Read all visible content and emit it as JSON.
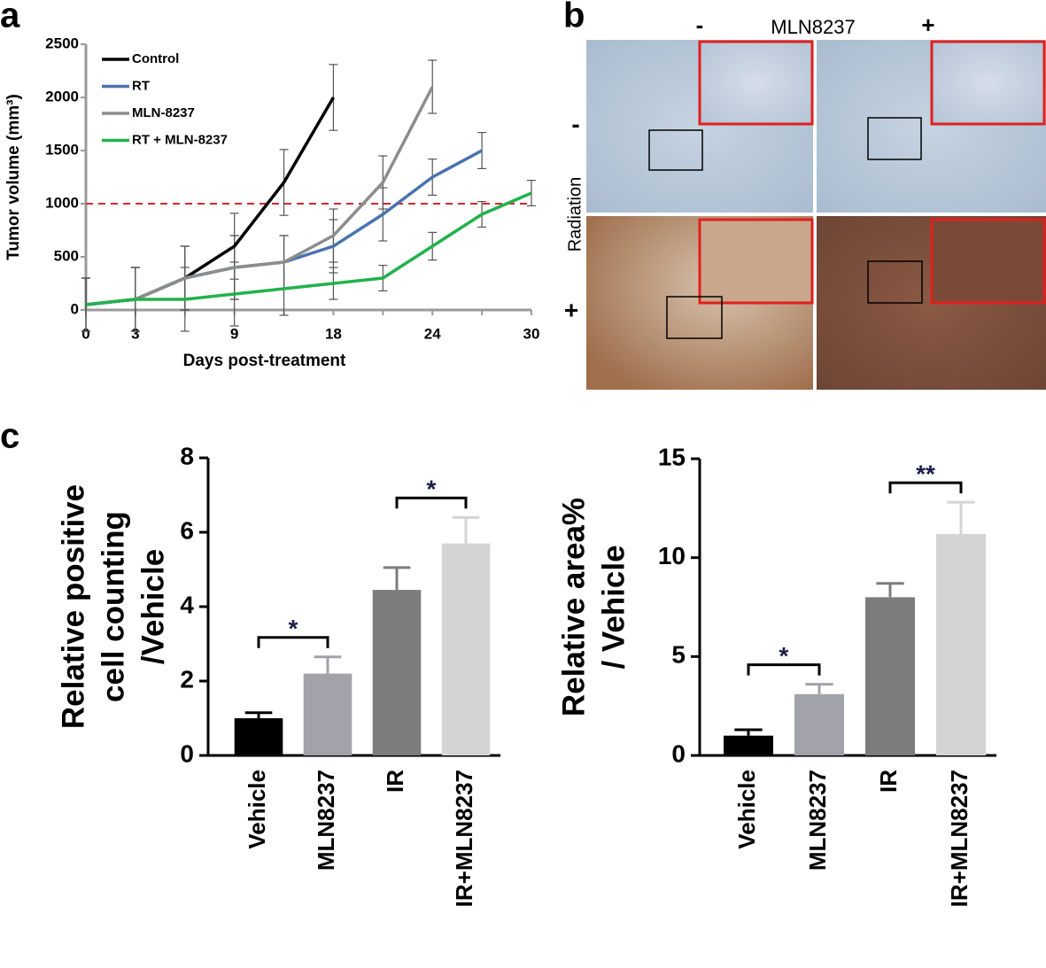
{
  "panel_labels": [
    "a",
    "b",
    "c"
  ],
  "image_panel": {
    "column_header": "MLN8237",
    "column_signs": [
      "-",
      "+"
    ],
    "row_header": "Radiation",
    "row_signs": [
      "-",
      "+"
    ]
  },
  "chart_data": [
    {
      "type": "line",
      "ylabel": "Tumor volume (mm³)",
      "xlabel": "Days post-treatment",
      "categories": [
        "0",
        "3",
        null,
        "9",
        null,
        "18",
        null,
        "24",
        null,
        "30"
      ],
      "ylim": [
        0,
        2500
      ],
      "yticks": [
        0,
        500,
        1000,
        1500,
        2000,
        2500
      ],
      "reference_line": {
        "value": 1000,
        "color": "#d9262b"
      },
      "legend": "top-left",
      "series": [
        {
          "name": "Control",
          "color": "#000000",
          "values": [
            50,
            100,
            300,
            600,
            1200,
            2000,
            null,
            null,
            null,
            null
          ],
          "errors": [
            250,
            300,
            300,
            310,
            310,
            310,
            null,
            null,
            null,
            null
          ]
        },
        {
          "name": "RT",
          "color": "#4a72b0",
          "values": [
            50,
            100,
            300,
            400,
            450,
            600,
            900,
            1250,
            1500,
            null
          ],
          "errors": [
            250,
            300,
            300,
            300,
            250,
            250,
            250,
            170,
            170,
            null
          ]
        },
        {
          "name": "MLN-8237",
          "color": "#8c8c8c",
          "values": [
            50,
            100,
            300,
            400,
            450,
            700,
            1200,
            2100,
            null,
            null
          ],
          "errors": [
            250,
            300,
            300,
            300,
            250,
            250,
            250,
            250,
            null,
            null
          ]
        },
        {
          "name": "RT + MLN-8237",
          "color": "#22b14c",
          "values": [
            50,
            100,
            100,
            150,
            200,
            250,
            300,
            600,
            900,
            1100
          ],
          "errors": [
            250,
            300,
            300,
            300,
            250,
            150,
            120,
            130,
            120,
            120
          ]
        }
      ]
    },
    {
      "type": "bar",
      "ylabel": [
        "Relative positive",
        "cell counting",
        "/Vehicle"
      ],
      "categories": [
        "Vehicle",
        "MLN8237",
        "IR",
        "IR+MLN8237"
      ],
      "values": [
        1,
        2.2,
        4.45,
        5.7
      ],
      "errors": [
        0.15,
        0.45,
        0.6,
        0.7
      ],
      "colors": [
        "#000000",
        "#a2a2aa",
        "#7c7c7c",
        "#d4d4d4"
      ],
      "ylim": [
        0,
        8
      ],
      "yticks": [
        0,
        2,
        4,
        6,
        8
      ],
      "annotations": [
        {
          "text": "*",
          "between": [
            "Vehicle",
            "MLN8237"
          ]
        },
        {
          "text": "*",
          "between": [
            "IR",
            "IR+MLN8237"
          ]
        }
      ]
    },
    {
      "type": "bar",
      "ylabel": [
        "Relative area%",
        "/ Vehicle"
      ],
      "categories": [
        "Vehicle",
        "MLN8237",
        "IR",
        "IR+MLN8237"
      ],
      "values": [
        1,
        3.1,
        8,
        11.2
      ],
      "errors": [
        0.3,
        0.5,
        0.7,
        1.6
      ],
      "colors": [
        "#000000",
        "#a2a2aa",
        "#7c7c7c",
        "#d4d4d4"
      ],
      "ylim": [
        0,
        15
      ],
      "yticks": [
        0,
        5,
        10,
        15
      ],
      "annotations": [
        {
          "text": "*",
          "between": [
            "Vehicle",
            "MLN8237"
          ]
        },
        {
          "text": "**",
          "between": [
            "IR",
            "IR+MLN8237"
          ]
        }
      ]
    }
  ]
}
